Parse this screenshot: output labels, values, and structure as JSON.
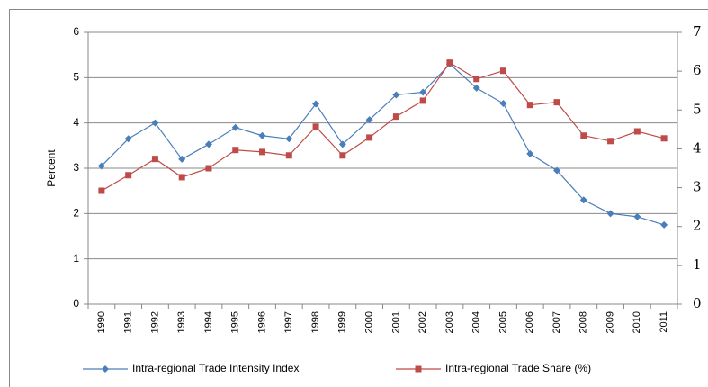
{
  "chart_data": {
    "type": "line",
    "y_label": "Percent",
    "categories": [
      "1990",
      "1991",
      "1992",
      "1993",
      "1994",
      "1995",
      "1996",
      "1997",
      "1998",
      "1999",
      "2000",
      "2001",
      "2002",
      "2003",
      "2004",
      "2005",
      "2006",
      "2007",
      "2008",
      "2009",
      "2010",
      "2011"
    ],
    "series": [
      {
        "name": "Intra-regional Trade Intensity Index",
        "color": "#4a7ebb",
        "marker": "diamond",
        "values": [
          3.05,
          3.65,
          4.0,
          3.2,
          3.53,
          3.9,
          3.72,
          3.65,
          4.42,
          3.53,
          4.07,
          4.62,
          4.68,
          5.3,
          4.77,
          4.43,
          3.32,
          2.95,
          2.3,
          2.0,
          1.93,
          1.75
        ]
      },
      {
        "name": "Intra-regional Trade Share (%)",
        "color": "#be4b48",
        "marker": "square",
        "axis": "y2",
        "values": [
          2.92,
          3.32,
          3.74,
          3.27,
          3.5,
          3.97,
          3.92,
          3.83,
          4.57,
          3.83,
          4.29,
          4.83,
          5.24,
          6.22,
          5.8,
          6.01,
          5.13,
          5.2,
          4.34,
          4.2,
          4.45,
          4.27
        ]
      }
    ],
    "ylim": [
      0,
      6
    ],
    "yticks": [
      0,
      1,
      2,
      3,
      4,
      5,
      6
    ],
    "y2lim": [
      0,
      7
    ],
    "y2ticks": [
      0,
      1,
      2,
      3,
      4,
      5,
      6,
      7
    ],
    "grid": true,
    "legend": "bottom"
  }
}
